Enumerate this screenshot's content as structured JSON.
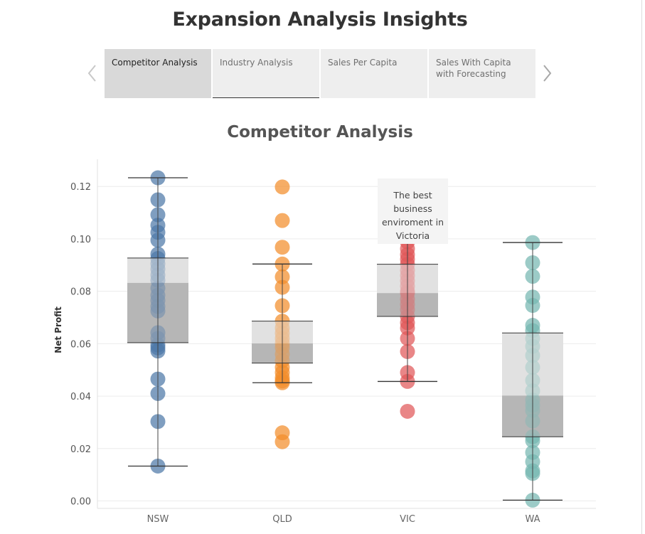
{
  "page": {
    "title": "Expansion Analysis Insights"
  },
  "nav": {
    "prev_icon": "chevron-left-icon",
    "next_icon": "chevron-right-icon"
  },
  "tabs": [
    {
      "label": "Competitor Analysis",
      "active": true
    },
    {
      "label": "Industry Analysis",
      "active": false
    },
    {
      "label": "Sales Per Capita",
      "active": false
    },
    {
      "label": "Sales With Capita with Forecasting",
      "active": false
    }
  ],
  "annotation": {
    "text": "The best business enviroment in Victoria"
  },
  "chart_data": {
    "type": "scatter",
    "subtype": "box-and-whisker with jittered points",
    "title": "Competitor Analysis",
    "ylabel": "Net Profit",
    "xlabel": "",
    "ylim": [
      0,
      0.13
    ],
    "yticks": [
      "0.00",
      "0.02",
      "0.04",
      "0.06",
      "0.08",
      "0.10",
      "0.12"
    ],
    "ytick_values": [
      0,
      0.02,
      0.04,
      0.06,
      0.08,
      0.1,
      0.12
    ],
    "grid": true,
    "legend": "none",
    "categories": [
      "NSW",
      "QLD",
      "VIC",
      "WA"
    ],
    "series": [
      {
        "name": "NSW",
        "color": "#4e79a7",
        "box": {
          "whisker_low": 0.0133,
          "q1": 0.0604,
          "median": 0.0832,
          "q3": 0.0927,
          "whisker_high": 0.1233
        },
        "values": [
          0.1233,
          0.1149,
          0.1092,
          0.1052,
          0.1025,
          0.0995,
          0.0942,
          0.0925,
          0.0905,
          0.0885,
          0.0862,
          0.0842,
          0.0812,
          0.0785,
          0.0765,
          0.0742,
          0.0725,
          0.0642,
          0.062,
          0.0595,
          0.0584,
          0.0572,
          0.0465,
          0.041,
          0.0303,
          0.0133
        ]
      },
      {
        "name": "QLD",
        "color": "#f28e2b",
        "box": {
          "whisker_low": 0.0451,
          "q1": 0.0526,
          "median": 0.0601,
          "q3": 0.0686,
          "whisker_high": 0.0904
        },
        "values": [
          0.1198,
          0.107,
          0.0968,
          0.0904,
          0.0855,
          0.0815,
          0.0745,
          0.0686,
          0.066,
          0.064,
          0.062,
          0.0601,
          0.0585,
          0.056,
          0.0535,
          0.051,
          0.049,
          0.047,
          0.0458,
          0.0451,
          0.026,
          0.0226
        ]
      },
      {
        "name": "VIC",
        "color": "#e15759",
        "box": {
          "whisker_low": 0.0456,
          "q1": 0.0704,
          "median": 0.0793,
          "q3": 0.0903,
          "whisker_high": 0.0988
        },
        "values": [
          0.0988,
          0.0962,
          0.094,
          0.0922,
          0.0903,
          0.088,
          0.086,
          0.084,
          0.082,
          0.08,
          0.0793,
          0.077,
          0.075,
          0.073,
          0.0704,
          0.068,
          0.066,
          0.062,
          0.057,
          0.049,
          0.0456,
          0.0342
        ]
      },
      {
        "name": "WA",
        "color": "#76b7b2",
        "box": {
          "whisker_low": 0.0003,
          "q1": 0.0245,
          "median": 0.0402,
          "q3": 0.0641,
          "whisker_high": 0.0986
        },
        "values": [
          0.0986,
          0.0909,
          0.0857,
          0.0778,
          0.0746,
          0.067,
          0.065,
          0.062,
          0.059,
          0.0555,
          0.051,
          0.046,
          0.042,
          0.0385,
          0.0365,
          0.0345,
          0.0305,
          0.0245,
          0.023,
          0.0185,
          0.015,
          0.0115,
          0.0105,
          0.0003
        ]
      }
    ]
  }
}
